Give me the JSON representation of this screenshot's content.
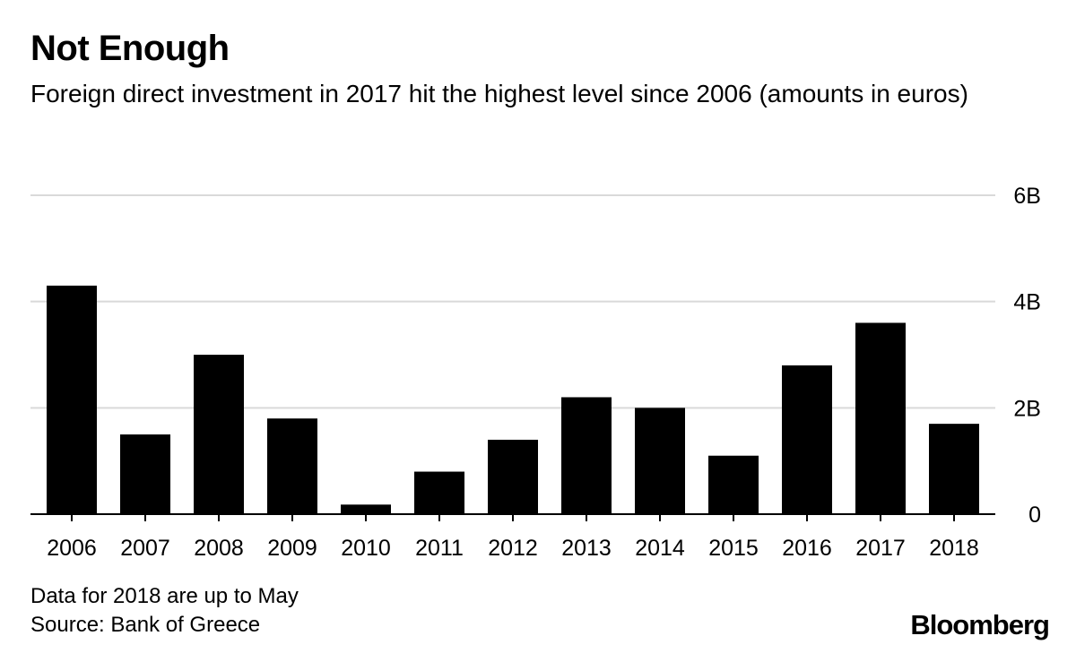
{
  "header": {
    "title": "Not Enough",
    "subtitle": "Foreign direct investment in 2017 hit the highest level since 2006 (amounts in euros)"
  },
  "footer": {
    "note": "Data for 2018 are up to May",
    "source": "Source: Bank of Greece",
    "brand": "Bloomberg"
  },
  "colors": {
    "bar": "#000000",
    "grid": "#d9d9d9",
    "text": "#000000"
  },
  "chart_data": {
    "type": "bar",
    "title": "Not Enough",
    "subtitle": "Foreign direct investment in 2017 hit the highest level since 2006 (amounts in euros)",
    "xlabel": "",
    "ylabel": "",
    "unit": "B euros",
    "categories": [
      "2006",
      "2007",
      "2008",
      "2009",
      "2010",
      "2011",
      "2012",
      "2013",
      "2014",
      "2015",
      "2016",
      "2017",
      "2018"
    ],
    "values": [
      4.3,
      1.5,
      3.0,
      1.8,
      0.18,
      0.8,
      1.4,
      2.2,
      2.0,
      1.1,
      2.8,
      3.6,
      1.7
    ],
    "ylim": [
      0,
      6
    ],
    "yticks": [
      0,
      2,
      4,
      6
    ],
    "ytick_labels": [
      "0",
      "2B",
      "4B",
      "6B"
    ],
    "y_axis_side": "right",
    "grid": true,
    "legend": "none"
  }
}
